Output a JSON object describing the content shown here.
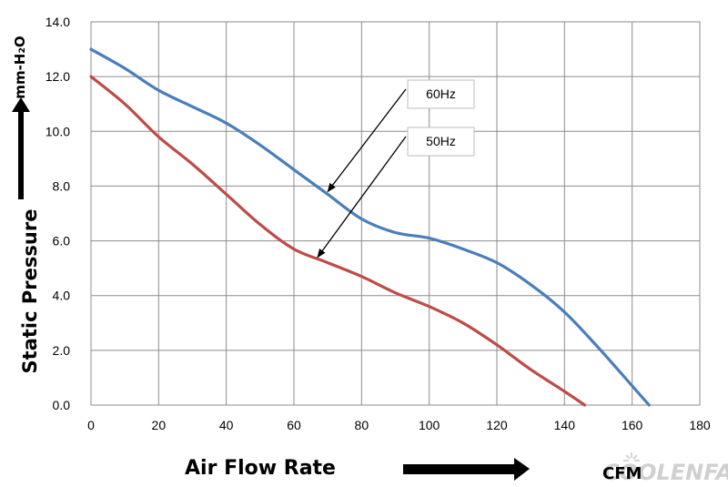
{
  "chart_data": {
    "type": "line",
    "xlabel": "Air Flow Rate",
    "xunit": "CFM",
    "ylabel": "Static Pressure",
    "yunit": "mm-H₂O",
    "xlim": [
      0,
      180
    ],
    "ylim": [
      0,
      14
    ],
    "xticks": [
      "0",
      "20",
      "40",
      "60",
      "80",
      "100",
      "120",
      "140",
      "160",
      "180"
    ],
    "yticks": [
      "0.0",
      "2.0",
      "4.0",
      "6.0",
      "8.0",
      "10.0",
      "12.0",
      "14.0"
    ],
    "grid": true,
    "series": [
      {
        "name": "60Hz",
        "color": "#4a7ebb",
        "x": [
          0,
          10,
          20,
          30,
          40,
          50,
          60,
          70,
          80,
          90,
          100,
          110,
          120,
          130,
          140,
          150,
          160,
          165
        ],
        "y": [
          13.0,
          12.3,
          11.5,
          10.9,
          10.3,
          9.5,
          8.6,
          7.7,
          6.8,
          6.3,
          6.1,
          5.7,
          5.2,
          4.4,
          3.4,
          2.1,
          0.7,
          0.0
        ]
      },
      {
        "name": "50Hz",
        "color": "#be4b48",
        "x": [
          0,
          10,
          20,
          30,
          40,
          50,
          60,
          70,
          80,
          90,
          100,
          110,
          120,
          130,
          140,
          146
        ],
        "y": [
          12.0,
          11.0,
          9.8,
          8.8,
          7.7,
          6.6,
          5.7,
          5.2,
          4.7,
          4.1,
          3.6,
          3.0,
          2.2,
          1.3,
          0.5,
          0.0
        ]
      }
    ],
    "annotations": [
      {
        "text": "60Hz",
        "series": "60Hz",
        "points_to_x": 70,
        "points_to_y": 7.8
      },
      {
        "text": "50Hz",
        "series": "50Hz",
        "points_to_x": 67,
        "points_to_y": 5.4
      }
    ]
  },
  "watermark": "COOLENFAN",
  "icons": {
    "x_arrow": "right-arrow-icon",
    "y_arrow": "up-arrow-icon",
    "watermark": "fan-logo-icon"
  }
}
